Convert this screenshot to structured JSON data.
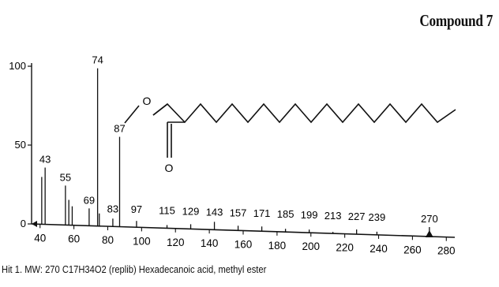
{
  "figure": {
    "label": "Compound 7",
    "caption": "Hit 1. MW: 270 C17H34O2 (replib) Hexadecanoic acid, methyl ester"
  },
  "structure": {
    "atoms": [
      "O",
      "O"
    ]
  },
  "chart_data": {
    "type": "bar",
    "title": "",
    "xlabel": "",
    "ylabel": "",
    "xlim": [
      35,
      285
    ],
    "ylim": [
      0,
      100
    ],
    "x_ticks": [
      40,
      60,
      80,
      100,
      120,
      140,
      160,
      180,
      200,
      220,
      240,
      260,
      280
    ],
    "y_ticks": [
      0,
      50,
      100
    ],
    "grid": false,
    "x": [
      41,
      43,
      55,
      57,
      59,
      69,
      74,
      75,
      83,
      87,
      97,
      115,
      129,
      143,
      157,
      171,
      185,
      199,
      213,
      227,
      239,
      270
    ],
    "values": [
      30,
      36,
      25,
      16,
      12,
      11,
      100,
      8,
      5,
      57,
      4,
      2,
      3,
      5,
      3,
      3,
      2,
      2,
      1,
      3,
      2,
      6
    ],
    "peak_labels": [
      {
        "mz": 43,
        "text": "43"
      },
      {
        "mz": 55,
        "text": "55"
      },
      {
        "mz": 69,
        "text": "69"
      },
      {
        "mz": 74,
        "text": "74"
      },
      {
        "mz": 83,
        "text": "83"
      },
      {
        "mz": 87,
        "text": "87"
      },
      {
        "mz": 97,
        "text": "97"
      },
      {
        "mz": 115,
        "text": "115"
      },
      {
        "mz": 129,
        "text": "129"
      },
      {
        "mz": 143,
        "text": "143"
      },
      {
        "mz": 157,
        "text": "157"
      },
      {
        "mz": 171,
        "text": "171"
      },
      {
        "mz": 185,
        "text": "185"
      },
      {
        "mz": 199,
        "text": "199"
      },
      {
        "mz": 213,
        "text": "213"
      },
      {
        "mz": 227,
        "text": "227"
      },
      {
        "mz": 239,
        "text": "239"
      },
      {
        "mz": 270,
        "text": "270"
      }
    ],
    "molecular_ion_marker": 270
  }
}
